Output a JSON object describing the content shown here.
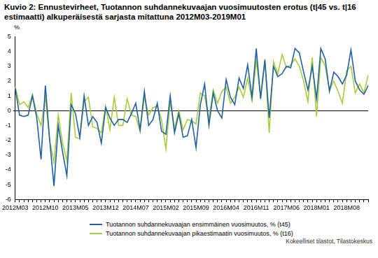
{
  "chart_data": {
    "type": "line",
    "title": "Kuvio 2: Ennustevirheet, Tuotannon suhdannekuvaajan vuosimuutosten erotus (t|45 vs. t|16 estimaatti) alkuperäisestä sarjasta mitattuna 2012M03-2019M01",
    "y_label": "%",
    "source": "Kokeelliset tilastot, Tilastokeskus",
    "categories": [
      "2012M03",
      null,
      null,
      null,
      null,
      null,
      null,
      "2012M10",
      null,
      null,
      null,
      null,
      null,
      null,
      "2013M05",
      null,
      null,
      null,
      null,
      null,
      null,
      "2013M12",
      null,
      null,
      null,
      null,
      null,
      null,
      "2014M07",
      null,
      null,
      null,
      null,
      null,
      null,
      "2015M02",
      null,
      null,
      null,
      null,
      null,
      null,
      "2015M09",
      null,
      null,
      null,
      null,
      null,
      null,
      "2016M04",
      null,
      null,
      null,
      null,
      null,
      null,
      "2016M11",
      null,
      null,
      null,
      null,
      null,
      null,
      "2017M06",
      null,
      null,
      null,
      null,
      null,
      null,
      "2018M01",
      null,
      null,
      null,
      null,
      null,
      null,
      "2018M08",
      null,
      null,
      null,
      null,
      null
    ],
    "series": [
      {
        "name": "Tuotannon suhdannekuvaajan ensimmäinen vuosimuutos, % (t45)",
        "color": "#1f5fa8",
        "values": [
          1.5,
          -0.3,
          -0.4,
          -0.3,
          1.0,
          -0.5,
          -3.3,
          1.7,
          -2.0,
          -5.1,
          -1.0,
          -2.8,
          -4.4,
          0.4,
          -0.2,
          -1.8,
          1.0,
          -1.0,
          -0.4,
          -0.8,
          -2.2,
          0.2,
          -0.5,
          -1.0,
          -0.6,
          -0.6,
          -0.8,
          -0.2,
          0.5,
          -1.3,
          1.3,
          -1.0,
          -0.6,
          0.5,
          -1.4,
          -1.6,
          1.0,
          -1.5,
          -0.2,
          -1.8,
          -1.7,
          -0.6,
          -2.5,
          0.4,
          1.8,
          -1.0,
          1.2,
          0.0,
          -0.5,
          2.1,
          0.9,
          0.4,
          2.2,
          1.5,
          3.1,
          0.9,
          4.2,
          0.8,
          3.4,
          -0.5,
          3.0,
          2.3,
          2.5,
          3.0,
          2.9,
          4.2,
          3.9,
          2.6,
          1.4,
          3.0,
          0.8,
          4.2,
          3.5,
          1.3,
          2.6,
          2.3,
          1.8,
          2.4,
          4.1,
          2.0,
          1.4,
          1.1,
          1.7
        ]
      },
      {
        "name": "Tuotannon suhdannekuvaajan pikaestimaatin vuosimuutos, % (t16)",
        "color": "#a6ce39",
        "values": [
          1.6,
          0.4,
          0.6,
          0.2,
          1.1,
          -0.2,
          -1.0,
          0.9,
          -2.0,
          -3.5,
          -0.3,
          -2.2,
          -3.4,
          1.2,
          -1.8,
          -1.9,
          0.6,
          0.9,
          -1.1,
          -1.2,
          -1.5,
          0.3,
          -1.3,
          0.9,
          -1.0,
          -1.0,
          0.8,
          -0.3,
          -0.4,
          -1.4,
          0.9,
          -0.3,
          0.2,
          0.3,
          -0.6,
          -2.6,
          0.6,
          -1.2,
          0.0,
          -1.3,
          -0.6,
          -0.7,
          -0.9,
          1.2,
          1.0,
          -0.6,
          1.4,
          0.5,
          1.3,
          1.6,
          0.5,
          0.9,
          1.6,
          0.9,
          2.2,
          0.7,
          3.4,
          1.0,
          3.5,
          -1.5,
          3.3,
          2.5,
          3.8,
          2.9,
          3.1,
          3.5,
          3.0,
          2.0,
          0.6,
          3.6,
          -0.4,
          3.6,
          3.0,
          1.4,
          2.0,
          1.3,
          0.5,
          2.7,
          3.0,
          1.2,
          1.8,
          1.2,
          2.4
        ]
      }
    ],
    "ylim": [
      -6,
      5
    ],
    "yticks": [
      -6,
      -5,
      -4,
      -3,
      -2,
      -1,
      0,
      1,
      2,
      3,
      4,
      5
    ],
    "grid": false,
    "legend": "bottom"
  }
}
